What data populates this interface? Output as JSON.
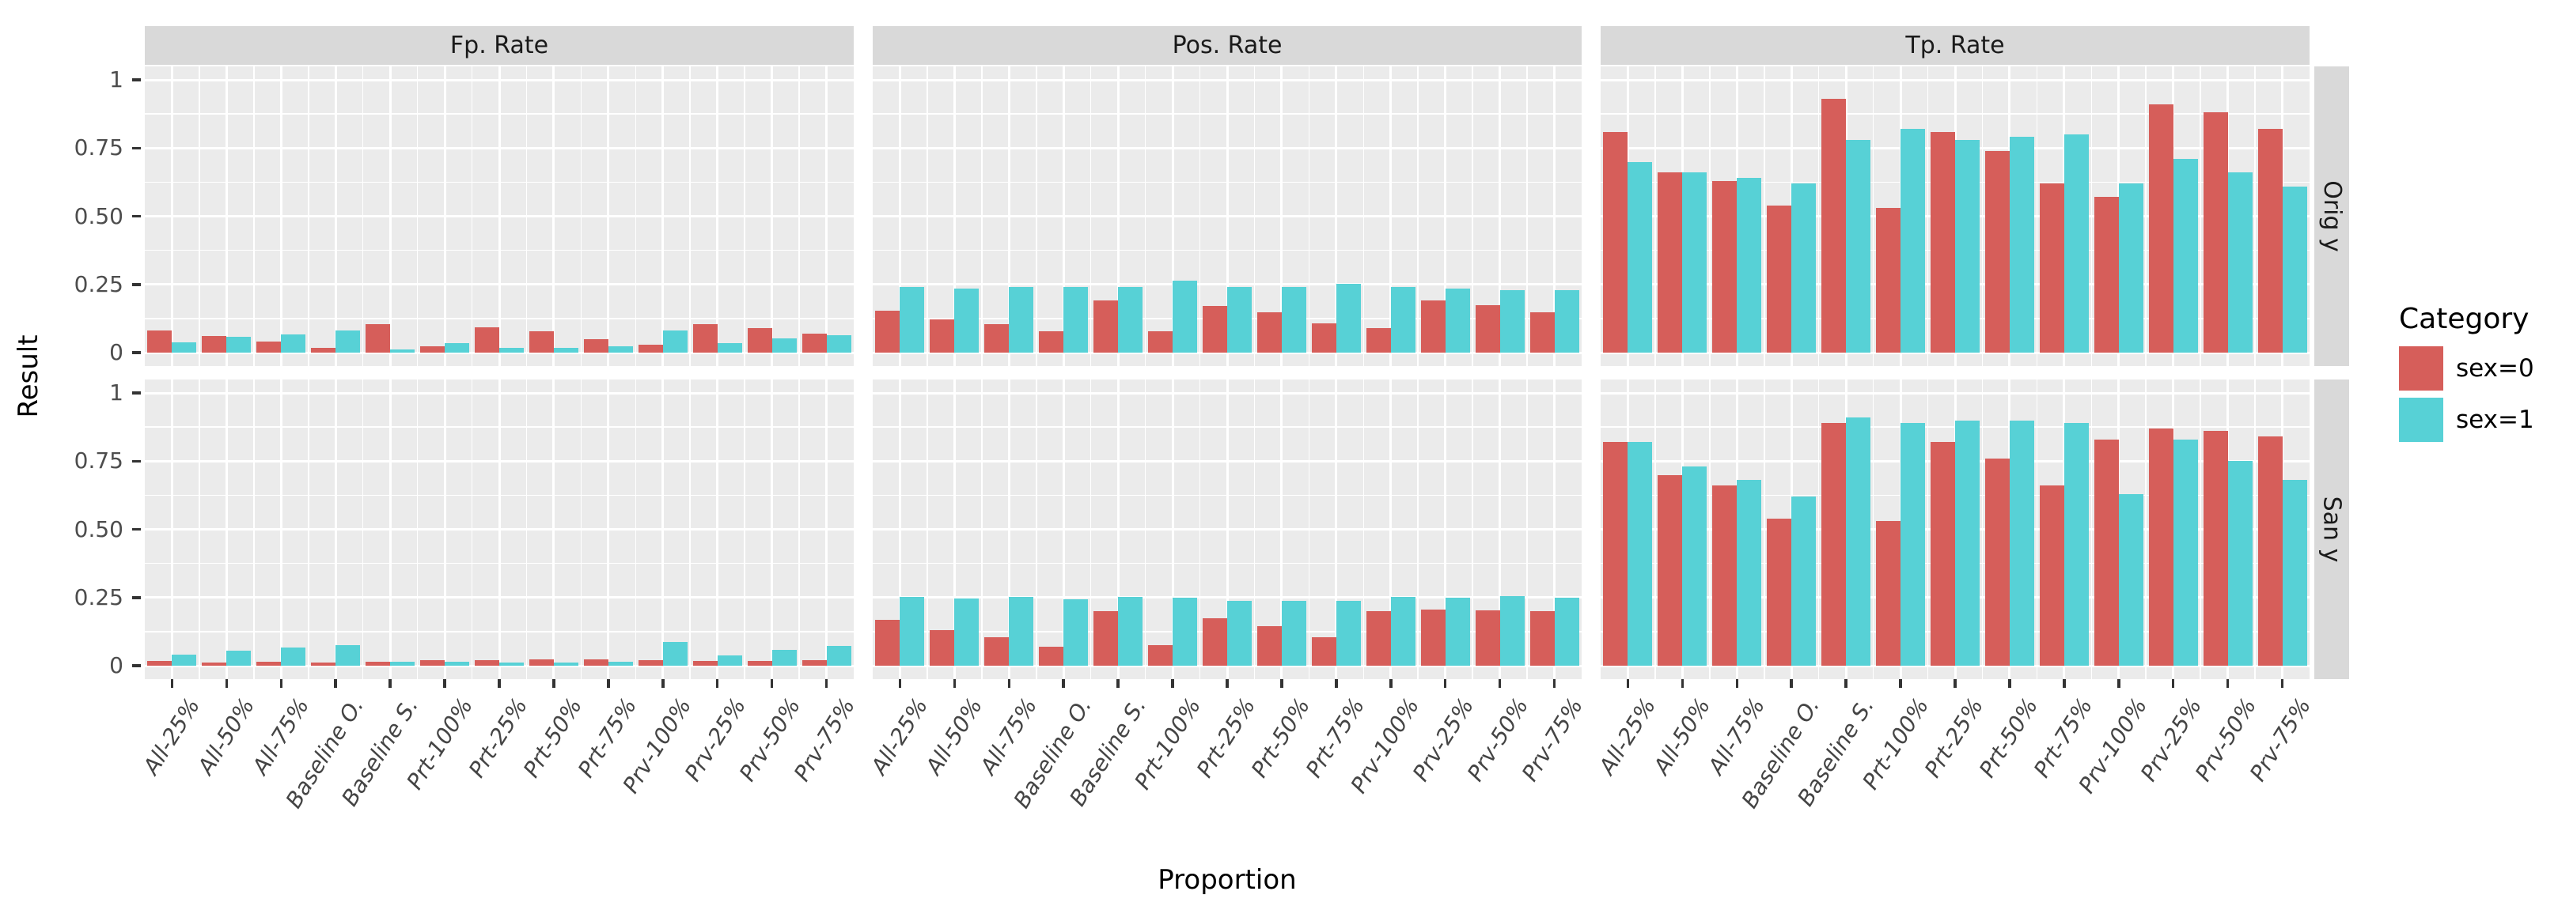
{
  "axes": {
    "x_title": "Proportion",
    "y_title": "Result",
    "y_tick_labels": [
      "1",
      "0.75",
      "0.50",
      "0.25",
      "0"
    ],
    "y_tick_values": [
      1,
      0.75,
      0.5,
      0.25,
      0
    ]
  },
  "facets": {
    "columns": [
      "Fp. Rate",
      "Pos. Rate",
      "Tp. Rate"
    ],
    "rows": [
      "Orig y",
      "San y"
    ]
  },
  "legend": {
    "title": "Category",
    "items": [
      {
        "label": "sex=0",
        "color": "#d65e5a"
      },
      {
        "label": "sex=1",
        "color": "#57d1d6"
      }
    ]
  },
  "colors": {
    "sex0": "#d65e5a",
    "sex1": "#57d1d6",
    "panel_bg": "#ebebeb",
    "strip_bg": "#d9d9d9",
    "gridline": "#ffffff",
    "tick_text": "#4d4d4d"
  },
  "chart_data": {
    "type": "bar",
    "title": "",
    "xlabel": "Proportion",
    "ylabel": "Result",
    "ylim": [
      0,
      1
    ],
    "grid": "on",
    "legend_position": "right",
    "categories": [
      "All-25%",
      "All-50%",
      "All-75%",
      "Baseline O.",
      "Baseline S.",
      "Prt-100%",
      "Prt-25%",
      "Prt-50%",
      "Prt-75%",
      "Prv-100%",
      "Prv-25%",
      "Prv-50%",
      "Prv-75%"
    ],
    "panels": [
      {
        "facet_col": "Fp. Rate",
        "facet_row": "Orig y",
        "series": [
          {
            "name": "sex=0",
            "values": [
              0.08,
              0.06,
              0.04,
              0.017,
              0.105,
              0.022,
              0.092,
              0.078,
              0.05,
              0.03,
              0.104,
              0.09,
              0.069
            ]
          },
          {
            "name": "sex=1",
            "values": [
              0.038,
              0.058,
              0.067,
              0.082,
              0.013,
              0.035,
              0.016,
              0.017,
              0.024,
              0.08,
              0.036,
              0.053,
              0.065
            ]
          }
        ]
      },
      {
        "facet_col": "Pos. Rate",
        "facet_row": "Orig y",
        "series": [
          {
            "name": "sex=0",
            "values": [
              0.154,
              0.122,
              0.103,
              0.077,
              0.19,
              0.077,
              0.171,
              0.148,
              0.108,
              0.089,
              0.19,
              0.173,
              0.148
            ]
          },
          {
            "name": "sex=1",
            "values": [
              0.242,
              0.234,
              0.242,
              0.242,
              0.242,
              0.263,
              0.24,
              0.242,
              0.252,
              0.242,
              0.234,
              0.23,
              0.228
            ]
          }
        ]
      },
      {
        "facet_col": "Tp. Rate",
        "facet_row": "Orig y",
        "series": [
          {
            "name": "sex=0",
            "values": [
              0.81,
              0.66,
              0.63,
              0.54,
              0.93,
              0.53,
              0.81,
              0.74,
              0.62,
              0.57,
              0.91,
              0.88,
              0.82
            ]
          },
          {
            "name": "sex=1",
            "values": [
              0.7,
              0.66,
              0.64,
              0.62,
              0.78,
              0.82,
              0.78,
              0.79,
              0.8,
              0.62,
              0.71,
              0.66,
              0.61
            ]
          }
        ]
      },
      {
        "facet_col": "Fp. Rate",
        "facet_row": "San y",
        "series": [
          {
            "name": "sex=0",
            "values": [
              0.018,
              0.012,
              0.015,
              0.012,
              0.015,
              0.019,
              0.019,
              0.024,
              0.022,
              0.019,
              0.017,
              0.018,
              0.021
            ]
          },
          {
            "name": "sex=1",
            "values": [
              0.04,
              0.054,
              0.066,
              0.075,
              0.014,
              0.015,
              0.011,
              0.013,
              0.014,
              0.087,
              0.039,
              0.058,
              0.072
            ]
          }
        ]
      },
      {
        "facet_col": "Pos. Rate",
        "facet_row": "San y",
        "series": [
          {
            "name": "sex=0",
            "values": [
              0.167,
              0.13,
              0.103,
              0.069,
              0.201,
              0.075,
              0.173,
              0.145,
              0.104,
              0.2,
              0.207,
              0.204,
              0.201
            ]
          },
          {
            "name": "sex=1",
            "values": [
              0.253,
              0.245,
              0.251,
              0.243,
              0.251,
              0.25,
              0.238,
              0.238,
              0.238,
              0.253,
              0.248,
              0.254,
              0.249
            ]
          }
        ]
      },
      {
        "facet_col": "Tp. Rate",
        "facet_row": "San y",
        "series": [
          {
            "name": "sex=0",
            "values": [
              0.82,
              0.7,
              0.66,
              0.54,
              0.89,
              0.53,
              0.82,
              0.76,
              0.66,
              0.83,
              0.87,
              0.86,
              0.84
            ]
          },
          {
            "name": "sex=1",
            "values": [
              0.82,
              0.73,
              0.68,
              0.62,
              0.91,
              0.89,
              0.9,
              0.9,
              0.89,
              0.63,
              0.83,
              0.75,
              0.68
            ]
          }
        ]
      }
    ]
  }
}
